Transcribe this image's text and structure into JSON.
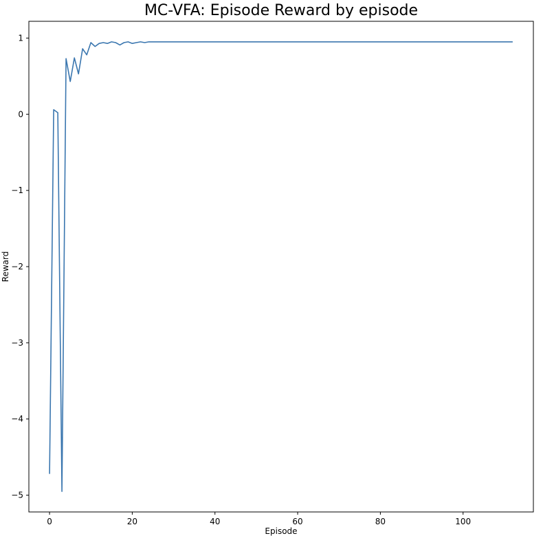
{
  "chart_data": {
    "type": "line",
    "title": "MC-VFA: Episode Reward by episode",
    "xlabel": "Episode",
    "ylabel": "Reward",
    "xlim": [
      -5,
      117
    ],
    "ylim": [
      -5.22,
      1.22
    ],
    "xticks": [
      0,
      20,
      40,
      60,
      80,
      100
    ],
    "yticks": [
      -5,
      -4,
      -3,
      -2,
      -1,
      0,
      1
    ],
    "grid": false,
    "line_color": "#3a76af",
    "series": [
      {
        "x": [
          0,
          1,
          2,
          3,
          4,
          5,
          6,
          7,
          8,
          9,
          10,
          11,
          12,
          13,
          14,
          15,
          16,
          17,
          18,
          19,
          20,
          21,
          22,
          23,
          24,
          112
        ],
        "values": [
          -4.72,
          0.06,
          0.02,
          -4.95,
          0.73,
          0.43,
          0.74,
          0.53,
          0.86,
          0.78,
          0.94,
          0.89,
          0.93,
          0.94,
          0.93,
          0.95,
          0.94,
          0.91,
          0.94,
          0.95,
          0.93,
          0.94,
          0.95,
          0.94,
          0.95,
          0.95
        ]
      }
    ]
  }
}
